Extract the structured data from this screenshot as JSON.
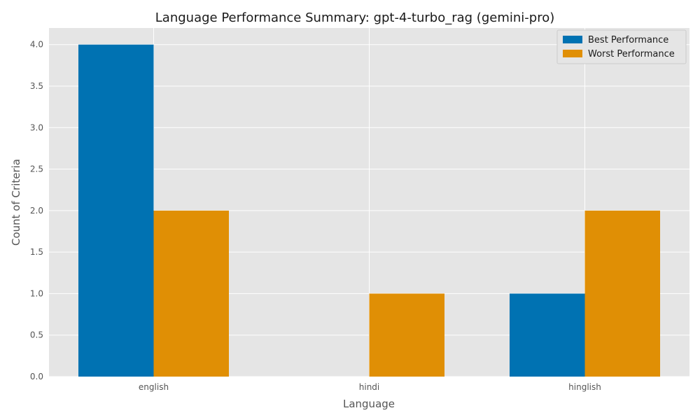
{
  "chart_data": {
    "type": "bar",
    "title": "Language Performance Summary: gpt-4-turbo_rag (gemini-pro)",
    "xlabel": "Language",
    "ylabel": "Count of Criteria",
    "categories": [
      "english",
      "hindi",
      "hinglish"
    ],
    "series": [
      {
        "name": "Best Performance",
        "values": [
          4,
          0,
          1
        ],
        "color": "#0072b2"
      },
      {
        "name": "Worst Performance",
        "values": [
          2,
          1,
          2
        ],
        "color": "#e08f05"
      }
    ],
    "ylim": [
      0,
      4.2
    ],
    "yticks": [
      "0.0",
      "0.5",
      "1.0",
      "1.5",
      "2.0",
      "2.5",
      "3.0",
      "3.5",
      "4.0"
    ],
    "grid": true,
    "legend_position": "top-right",
    "background_color": "#e5e5e5"
  }
}
